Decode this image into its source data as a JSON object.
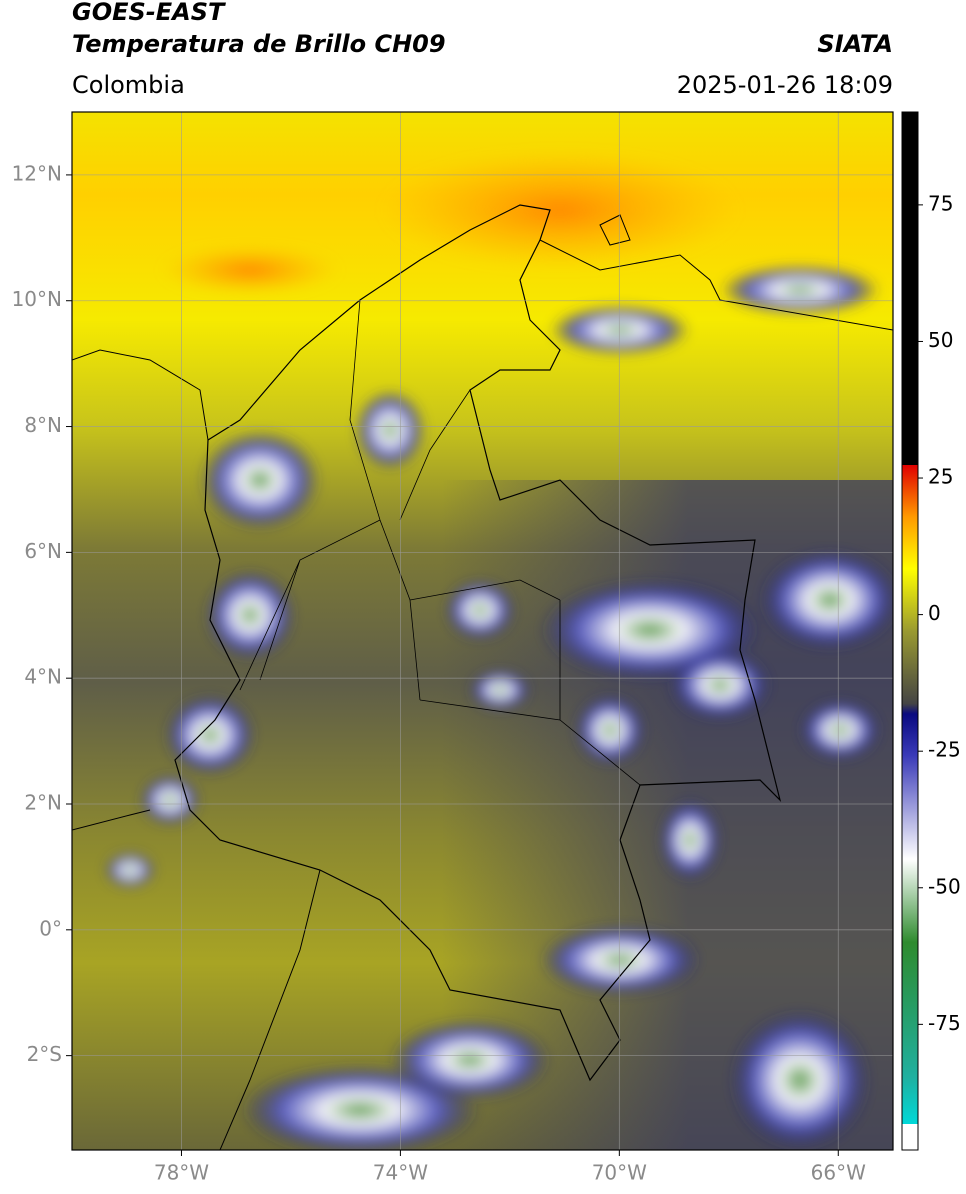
{
  "header": {
    "title": "GOES-EAST",
    "subtitle": "Temperatura de Brillo CH09",
    "source": "SIATA",
    "region": "Colombia",
    "datetime": "2025-01-26 18:09"
  },
  "map": {
    "xlim": [
      -80,
      -65
    ],
    "ylim": [
      -3.5,
      13
    ],
    "xticks": [
      {
        "value": -78,
        "label": "78°W"
      },
      {
        "value": -74,
        "label": "74°W"
      },
      {
        "value": -70,
        "label": "70°W"
      },
      {
        "value": -66,
        "label": "66°W"
      }
    ],
    "yticks": [
      {
        "value": 12,
        "label": "12°N"
      },
      {
        "value": 10,
        "label": "10°N"
      },
      {
        "value": 8,
        "label": "8°N"
      },
      {
        "value": 6,
        "label": "6°N"
      },
      {
        "value": 4,
        "label": "4°N"
      },
      {
        "value": 2,
        "label": "2°N"
      },
      {
        "value": 0,
        "label": "0°"
      },
      {
        "value": -2,
        "label": "2°S"
      }
    ],
    "grid": true
  },
  "colorbar": {
    "clim": [
      -98,
      92
    ],
    "ticks": [
      75,
      50,
      25,
      0,
      -25,
      -50,
      -75
    ]
  }
}
